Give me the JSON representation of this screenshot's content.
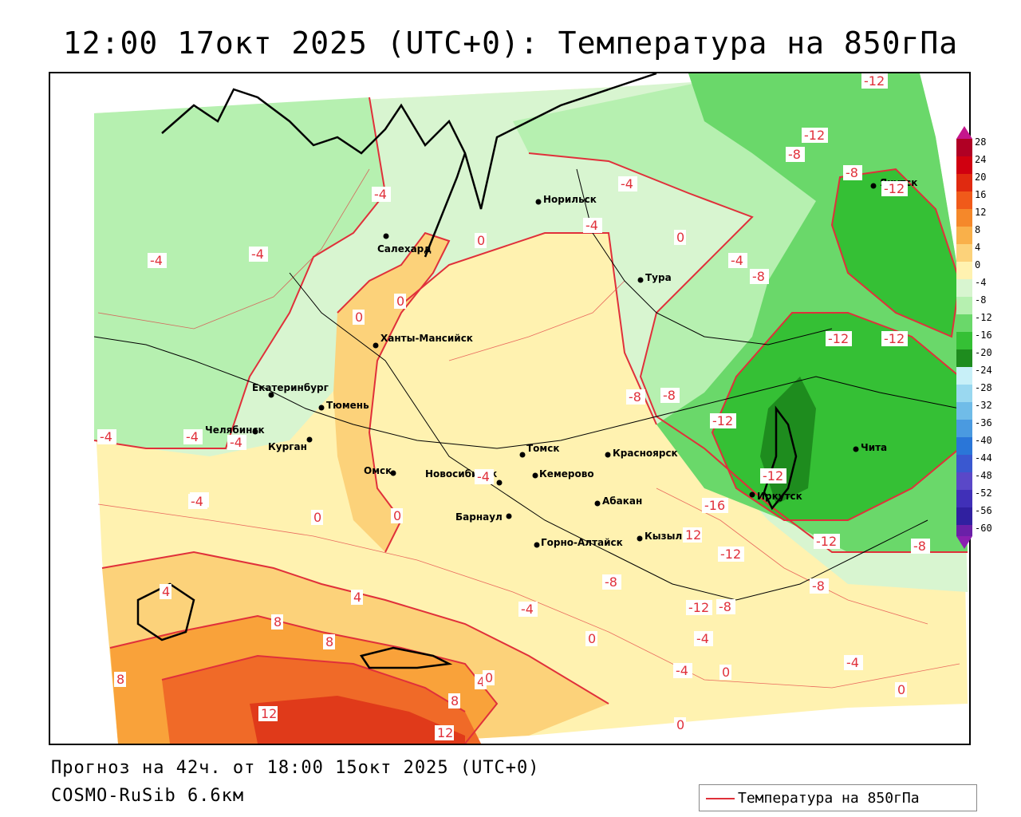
{
  "title": "12:00 17окт 2025 (UTC+0): Температура на 850гПа",
  "footer": {
    "forecast": "Прогноз на 42ч. от 18:00 15окт 2025 (UTC+0)",
    "model": "COSMO-RuSib 6.6км"
  },
  "legend": {
    "label": "Температура на 850гПа",
    "color": "#e0303a"
  },
  "colorbar": {
    "ticks": [
      "28",
      "24",
      "20",
      "16",
      "12",
      "8",
      "4",
      "0",
      "-4",
      "-8",
      "-12",
      "-16",
      "-20",
      "-24",
      "-28",
      "-32",
      "-36",
      "-40",
      "-44",
      "-48",
      "-52",
      "-56",
      "-60"
    ]
  },
  "cities": [
    {
      "name": "Салехард"
    },
    {
      "name": "Норильск"
    },
    {
      "name": "Якутск"
    },
    {
      "name": "Тура"
    },
    {
      "name": "Ханты-Мансийск"
    },
    {
      "name": "Екатеринбург"
    },
    {
      "name": "Тюмень"
    },
    {
      "name": "Челябинск"
    },
    {
      "name": "Курган"
    },
    {
      "name": "Омск"
    },
    {
      "name": "Новосибирск"
    },
    {
      "name": "Томск"
    },
    {
      "name": "Кемерово"
    },
    {
      "name": "Барнаул"
    },
    {
      "name": "Красноярск"
    },
    {
      "name": "Абакан"
    },
    {
      "name": "Кызыл"
    },
    {
      "name": "Горно-Алтайск"
    },
    {
      "name": "Иркутск"
    },
    {
      "name": "Чита"
    }
  ],
  "isotherm_labels": [
    "-12",
    "-12",
    "-8",
    "-8",
    "-12",
    "-4",
    "-4",
    "-4",
    "0",
    "-4",
    "-4",
    "0",
    "-4",
    "-8",
    "-12",
    "-12",
    "0",
    "0",
    "-8",
    "-8",
    "-12",
    "-4",
    "-4",
    "-4",
    "-4",
    "0",
    "0",
    "-12",
    "-16",
    "-12",
    "-12",
    "-8",
    "-8",
    "-4",
    "-12",
    "-8",
    "-4",
    "0",
    "-4",
    "0",
    "4",
    "0",
    "4",
    "8",
    "8",
    "8",
    "4",
    "12",
    "8",
    "12",
    "-4",
    "0",
    "-4",
    "-8",
    "0",
    "-4",
    "12"
  ],
  "colors": {
    "ocean": "#ffffff",
    "cold_-16": "#1e8c1e",
    "cold_-12": "#35c035",
    "cold_-8": "#6ad86a",
    "cold_-4": "#b6f0b0",
    "cool_0": "#d8f5d0",
    "warm_0_4": "#fff2b0",
    "warm_4_8": "#fcd27a",
    "warm_8_12": "#f9a23a",
    "hot_12": "#f06a28",
    "hot_16": "#e03a1a",
    "contour": "#e0303a"
  }
}
